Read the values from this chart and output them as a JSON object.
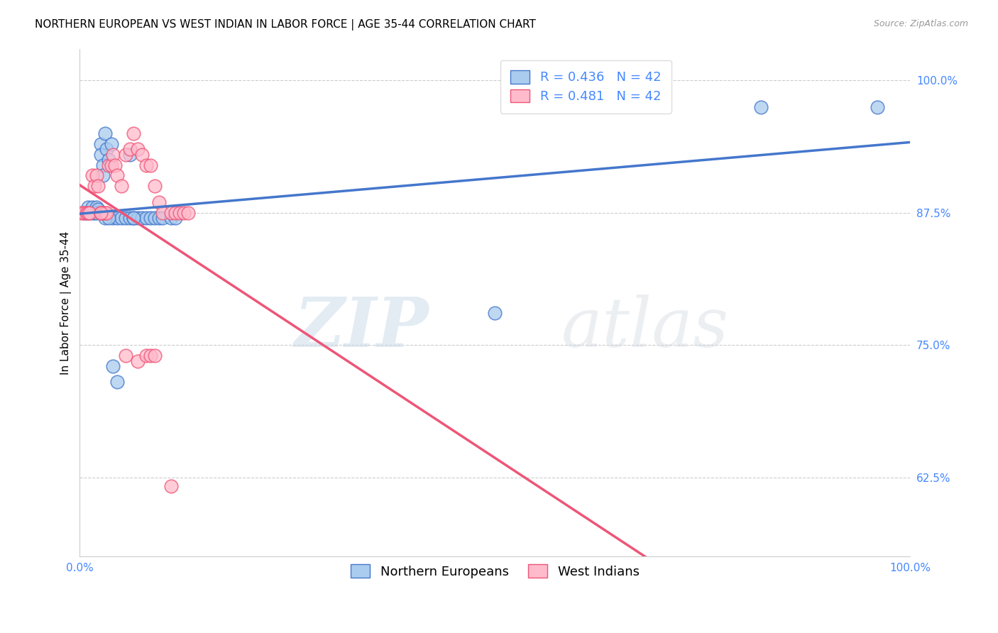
{
  "title": "NORTHERN EUROPEAN VS WEST INDIAN IN LABOR FORCE | AGE 35-44 CORRELATION CHART",
  "source": "Source: ZipAtlas.com",
  "ylabel": "In Labor Force | Age 35-44",
  "xlim": [
    0.0,
    1.0
  ],
  "ylim": [
    0.55,
    1.03
  ],
  "x_ticks": [
    0.0,
    0.1,
    0.2,
    0.3,
    0.4,
    0.5,
    0.6,
    0.7,
    0.8,
    0.9,
    1.0
  ],
  "y_tick_labels": [
    "62.5%",
    "75.0%",
    "87.5%",
    "100.0%"
  ],
  "y_tick_vals": [
    0.625,
    0.75,
    0.875,
    1.0
  ],
  "blue_R": 0.436,
  "blue_N": 42,
  "pink_R": 0.481,
  "pink_N": 42,
  "blue_color": "#AACCEE",
  "pink_color": "#FFBBCC",
  "line_blue": "#4477CC",
  "line_pink": "#EE5577",
  "legend_label_blue": "Northern Europeans",
  "legend_label_pink": "West Indians",
  "watermark_zip": "ZIP",
  "watermark_atlas": "atlas",
  "blue_x": [
    0.005,
    0.008,
    0.01,
    0.012,
    0.015,
    0.015,
    0.018,
    0.02,
    0.02,
    0.022,
    0.025,
    0.025,
    0.028,
    0.028,
    0.03,
    0.032,
    0.035,
    0.038,
    0.04,
    0.045,
    0.05,
    0.055,
    0.06,
    0.065,
    0.07,
    0.075,
    0.08,
    0.085,
    0.09,
    0.095,
    0.1,
    0.11,
    0.115,
    0.04,
    0.045,
    0.06,
    0.5,
    0.82,
    0.96,
    0.03,
    0.035,
    0.065
  ],
  "blue_y": [
    0.875,
    0.875,
    0.88,
    0.875,
    0.88,
    0.875,
    0.875,
    0.88,
    0.875,
    0.878,
    0.94,
    0.93,
    0.92,
    0.91,
    0.95,
    0.935,
    0.925,
    0.94,
    0.87,
    0.87,
    0.87,
    0.87,
    0.87,
    0.87,
    0.87,
    0.87,
    0.87,
    0.87,
    0.87,
    0.87,
    0.87,
    0.87,
    0.87,
    0.73,
    0.715,
    0.93,
    0.78,
    0.975,
    0.975,
    0.87,
    0.87,
    0.87
  ],
  "pink_x": [
    0.002,
    0.005,
    0.008,
    0.01,
    0.012,
    0.015,
    0.018,
    0.02,
    0.022,
    0.025,
    0.025,
    0.028,
    0.03,
    0.032,
    0.035,
    0.038,
    0.04,
    0.042,
    0.045,
    0.05,
    0.055,
    0.06,
    0.065,
    0.07,
    0.075,
    0.08,
    0.085,
    0.09,
    0.095,
    0.1,
    0.11,
    0.115,
    0.12,
    0.125,
    0.13,
    0.055,
    0.07,
    0.08,
    0.085,
    0.09,
    0.025,
    0.11
  ],
  "pink_y": [
    0.875,
    0.875,
    0.875,
    0.875,
    0.875,
    0.91,
    0.9,
    0.91,
    0.9,
    0.875,
    0.875,
    0.875,
    0.875,
    0.875,
    0.92,
    0.92,
    0.93,
    0.92,
    0.91,
    0.9,
    0.93,
    0.935,
    0.95,
    0.935,
    0.93,
    0.92,
    0.92,
    0.9,
    0.885,
    0.875,
    0.875,
    0.875,
    0.875,
    0.875,
    0.875,
    0.74,
    0.735,
    0.74,
    0.74,
    0.74,
    0.875,
    0.617
  ],
  "title_fontsize": 11,
  "axis_label_fontsize": 11,
  "tick_fontsize": 11,
  "legend_fontsize": 13,
  "tick_color": "#4488FF"
}
